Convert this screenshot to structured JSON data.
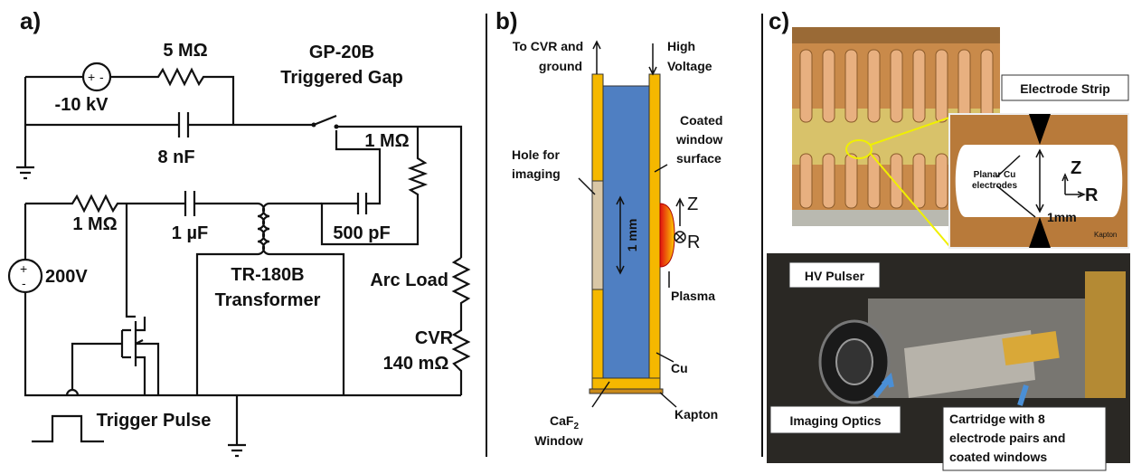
{
  "panel_a": {
    "label": "a)",
    "source_hv": "-10 kV",
    "resistor_top": "5 MΩ",
    "gap_name": "GP-20B",
    "gap_type": "Triggered Gap",
    "capacitor_top": "8 nF",
    "resistor_right": "1 MΩ",
    "resistor_left": "1 MΩ",
    "capacitor_mid": "1 µF",
    "capacitor_right": "500 pF",
    "source_lv": "200V",
    "transformer_name": "TR-180B",
    "transformer_type": "Transformer",
    "load": "Arc Load",
    "cvr_name": "CVR",
    "cvr_value": "140 mΩ",
    "trigger": "Trigger Pulse"
  },
  "panel_b": {
    "label": "b)",
    "left_top": [
      "To CVR and",
      "ground"
    ],
    "right_top": [
      "High",
      "Voltage"
    ],
    "coated": [
      "Coated",
      "window",
      "surface"
    ],
    "hole": [
      "Hole for",
      "imaging"
    ],
    "gap": "1 mm",
    "axis_z": "Z",
    "axis_r": "R",
    "plasma": "Plasma",
    "cu": "Cu",
    "kapton": "Kapton",
    "window_material": {
      "text": "CaF",
      "subscript": "2"
    },
    "window": "Window"
  },
  "panel_c": {
    "label": "c)",
    "strip": "Electrode Strip",
    "inset_electrodes": [
      "Planar Cu",
      "electrodes"
    ],
    "inset_z": "Z",
    "inset_r": "R",
    "inset_gap": "1mm",
    "inset_kapton": "Kapton",
    "pulser": "HV Pulser",
    "optics": "Imaging Optics",
    "cartridge": [
      "Cartridge with 8",
      "electrode pairs and",
      "coated windows"
    ]
  }
}
